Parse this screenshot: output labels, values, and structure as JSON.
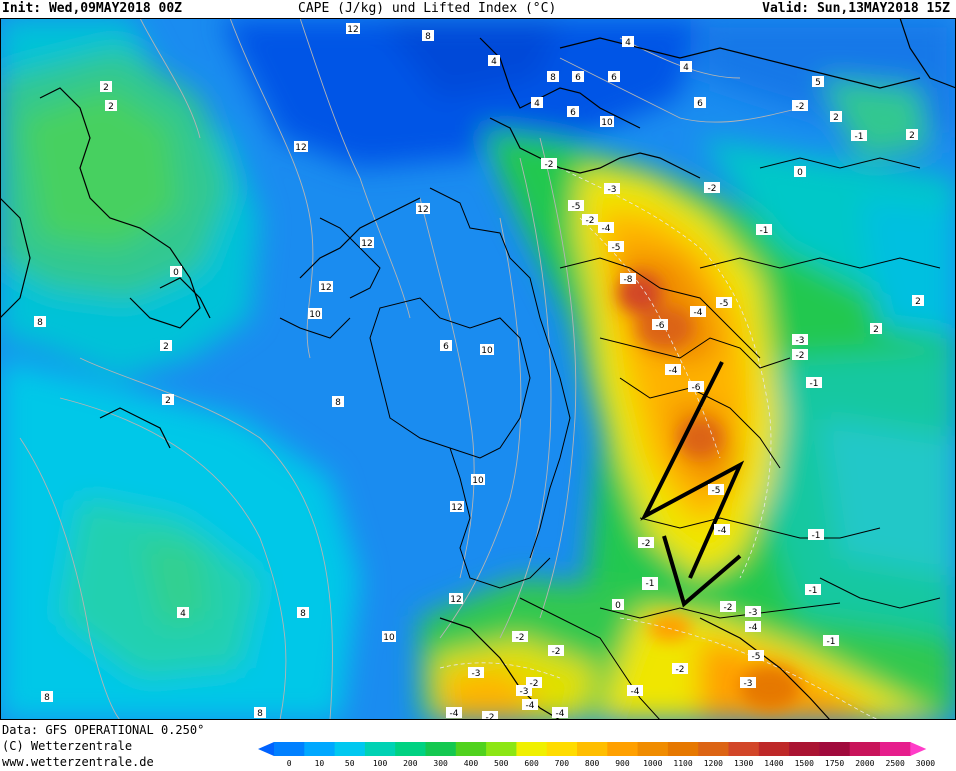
{
  "header": {
    "init": "Init: Wed,09MAY2018 00Z",
    "title": "CAPE (J/kg) und Lifted Index (°C)",
    "valid": "Valid: Sun,13MAY2018 15Z"
  },
  "footer": {
    "data_source": "Data: GFS OPERATIONAL 0.250°",
    "copyright": "(C) Wetterzentrale",
    "website": "www.wetterzentrale.de"
  },
  "legend": {
    "ticks": [
      "0",
      "10",
      "50",
      "100",
      "200",
      "300",
      "400",
      "500",
      "600",
      "700",
      "800",
      "900",
      "1000",
      "1100",
      "1200",
      "1300",
      "1400",
      "1500",
      "1750",
      "2000",
      "2500",
      "3000"
    ],
    "colors": [
      "#0063ff",
      "#0080ff",
      "#00a8ff",
      "#00c8f0",
      "#00d2b4",
      "#00d282",
      "#14c850",
      "#50d21e",
      "#8ce614",
      "#f0f000",
      "#ffdc00",
      "#ffbe00",
      "#ffa000",
      "#f08c00",
      "#e67800",
      "#dc6414",
      "#d24628",
      "#be2828",
      "#aa1432",
      "#a00a3c",
      "#c8145a",
      "#e61e8c",
      "#ff3cc8"
    ]
  },
  "contour_labels": {
    "positive": [
      "12",
      "8",
      "4",
      "2",
      "2",
      "12",
      "12",
      "12",
      "12",
      "10",
      "0",
      "8",
      "2",
      "2",
      "10",
      "8",
      "10",
      "12",
      "12",
      "8",
      "10",
      "4",
      "8",
      "4",
      "8",
      "6",
      "6",
      "4",
      "6",
      "6",
      "5",
      "10",
      "6",
      "4",
      "8",
      "2",
      "0",
      "2",
      "2",
      "2",
      "0"
    ],
    "negative": [
      "-2",
      "-2",
      "-3",
      "-5",
      "-4",
      "-5",
      "-8",
      "-6",
      "-5",
      "-4",
      "-4",
      "-6",
      "-5",
      "-4",
      "-2",
      "-1",
      "-1",
      "-1",
      "-3",
      "-2",
      "-1",
      "-3",
      "-2",
      "-2",
      "-4",
      "-5",
      "-3",
      "-4",
      "-2",
      "-2",
      "-3",
      "-3",
      "-4",
      "-2",
      "-2",
      "-1",
      "-1",
      "-1",
      "-2",
      "-4",
      "-4",
      "-2",
      "-2"
    ]
  }
}
